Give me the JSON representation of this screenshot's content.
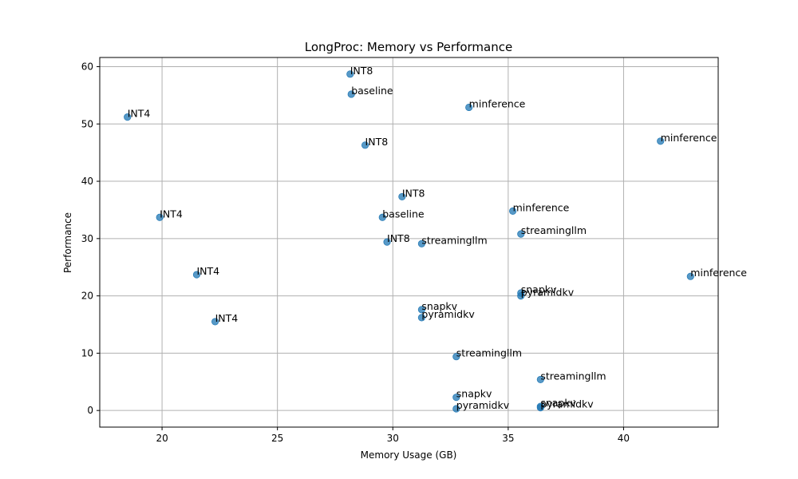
{
  "chart_data": {
    "type": "scatter",
    "title": "LongProc: Memory vs Performance",
    "xlabel": "Memory Usage (GB)",
    "ylabel": "Performance",
    "xlim": [
      17.3,
      44.1
    ],
    "ylim": [
      -2.9,
      61.6
    ],
    "xticks": [
      20,
      25,
      30,
      35,
      40
    ],
    "yticks": [
      0,
      10,
      20,
      30,
      40,
      50,
      60
    ],
    "grid": true,
    "point_color": "#1f77b4",
    "points": [
      {
        "x": 28.15,
        "y": 58.7,
        "label": "INT8"
      },
      {
        "x": 28.2,
        "y": 55.2,
        "label": "baseline"
      },
      {
        "x": 18.5,
        "y": 51.2,
        "label": "INT4"
      },
      {
        "x": 33.3,
        "y": 52.9,
        "label": "minference"
      },
      {
        "x": 28.8,
        "y": 46.3,
        "label": "INT8"
      },
      {
        "x": 41.6,
        "y": 47.0,
        "label": "minference"
      },
      {
        "x": 30.4,
        "y": 37.3,
        "label": "INT8"
      },
      {
        "x": 19.9,
        "y": 33.7,
        "label": "INT4"
      },
      {
        "x": 29.55,
        "y": 33.7,
        "label": "baseline"
      },
      {
        "x": 35.2,
        "y": 34.8,
        "label": "minference"
      },
      {
        "x": 35.55,
        "y": 30.8,
        "label": "streamingllm"
      },
      {
        "x": 29.75,
        "y": 29.4,
        "label": "INT8"
      },
      {
        "x": 31.25,
        "y": 29.1,
        "label": "streamingllm"
      },
      {
        "x": 21.5,
        "y": 23.7,
        "label": "INT4"
      },
      {
        "x": 42.9,
        "y": 23.4,
        "label": "minference"
      },
      {
        "x": 35.55,
        "y": 20.5,
        "label": "snapkv"
      },
      {
        "x": 35.55,
        "y": 20.0,
        "label": "pyramidkv"
      },
      {
        "x": 31.25,
        "y": 17.6,
        "label": "snapkv"
      },
      {
        "x": 31.25,
        "y": 16.2,
        "label": "pyramidkv"
      },
      {
        "x": 22.3,
        "y": 15.5,
        "label": "INT4"
      },
      {
        "x": 32.75,
        "y": 9.4,
        "label": "streamingllm"
      },
      {
        "x": 36.4,
        "y": 5.4,
        "label": "streamingllm"
      },
      {
        "x": 32.75,
        "y": 2.3,
        "label": "snapkv"
      },
      {
        "x": 32.75,
        "y": 0.3,
        "label": "pyramidkv"
      },
      {
        "x": 36.4,
        "y": 0.7,
        "label": "snapkv"
      },
      {
        "x": 36.4,
        "y": 0.5,
        "label": "pyramidkv"
      }
    ]
  }
}
